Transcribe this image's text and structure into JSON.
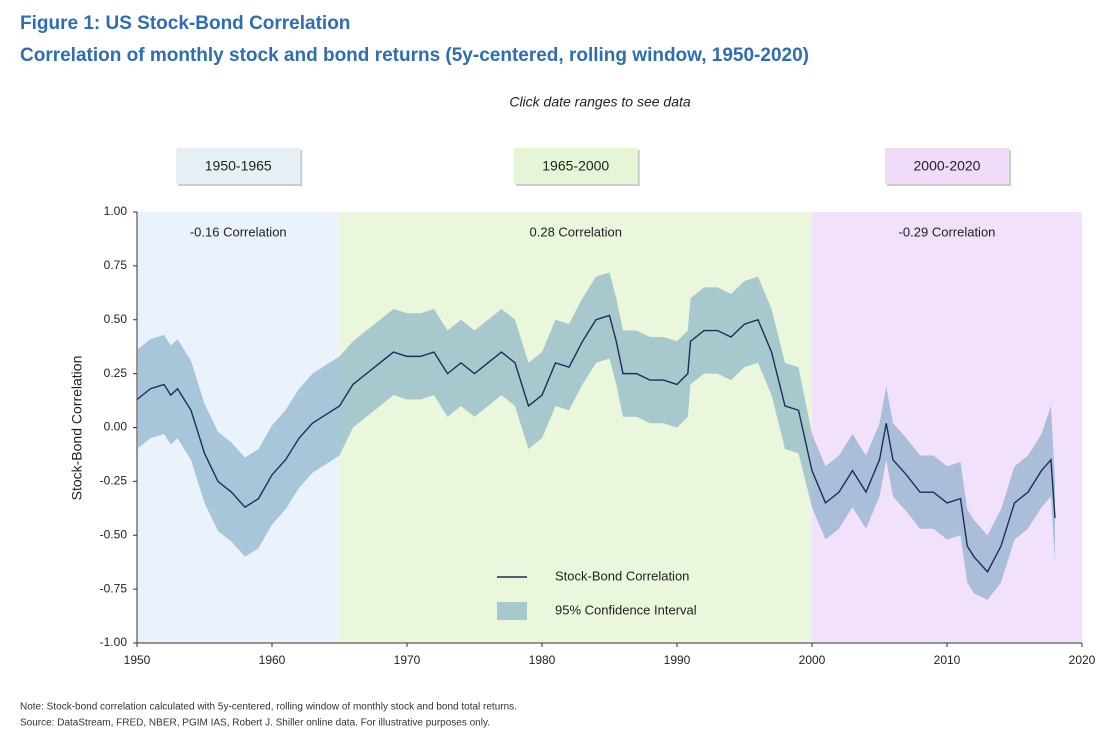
{
  "chart_data": {
    "type": "line",
    "title": "Figure 1: US Stock-Bond Correlation",
    "subtitle": "Correlation of monthly stock and bond returns (5y-centered, rolling window, 1950-2020)",
    "instruction": "Click date ranges to see data",
    "ylabel": "Stock-Bond Correlation",
    "xlim": [
      1950,
      2020
    ],
    "xticks": [
      1950,
      1960,
      1970,
      1980,
      1990,
      2000,
      2010,
      2020
    ],
    "ylim": [
      -1,
      1
    ],
    "yticks": [
      {
        "value": -1,
        "label": "-1.00"
      },
      {
        "value": -0.75,
        "label": "-0.75"
      },
      {
        "value": -0.5,
        "label": "-0.50"
      },
      {
        "value": -0.25,
        "label": "-0.25"
      },
      {
        "value": 0,
        "label": "0.00"
      },
      {
        "value": 0.25,
        "label": "0.25"
      },
      {
        "value": 0.5,
        "label": "0.50"
      },
      {
        "value": 0.75,
        "label": "0.75"
      },
      {
        "value": 1,
        "label": "1.00"
      }
    ],
    "regions": [
      {
        "label": "1950-1965",
        "start": 1950,
        "end": 1965,
        "color": "#eaf2fb",
        "button_color": "#e6f0f4",
        "annotation": "-0.16 Correlation"
      },
      {
        "label": "1965-2000",
        "start": 1965,
        "end": 2000,
        "color": "#eaf7dc",
        "button_color": "#e6f5d6",
        "annotation": "0.28 Correlation"
      },
      {
        "label": "2000-2020",
        "start": 2000,
        "end": 2020,
        "color": "#f1e1fb",
        "button_color": "#f0dcf8",
        "annotation": "-0.29 Correlation"
      }
    ],
    "x": [
      1950,
      1951,
      1952,
      1952.5,
      1953,
      1954,
      1955,
      1956,
      1957,
      1958,
      1959,
      1960,
      1961,
      1962,
      1963,
      1964,
      1965,
      1966,
      1967,
      1968,
      1969,
      1970,
      1971,
      1972,
      1973,
      1974,
      1975,
      1976,
      1977,
      1978,
      1979,
      1980,
      1981,
      1982,
      1983,
      1984,
      1985,
      1985.5,
      1986,
      1987,
      1988,
      1989,
      1990,
      1990.8,
      1991,
      1992,
      1993,
      1994,
      1995,
      1996,
      1997,
      1998,
      1999,
      2000,
      2001,
      2002,
      2003,
      2004,
      2005,
      2005.5,
      2006,
      2007,
      2008,
      2009,
      2010,
      2011,
      2011.5,
      2012,
      2013,
      2014,
      2015,
      2016,
      2017,
      2017.7,
      2018
    ],
    "series": [
      {
        "name": "Stock-Bond Correlation",
        "color": "#1f2d5c",
        "values": [
          0.13,
          0.18,
          0.2,
          0.15,
          0.18,
          0.08,
          -0.12,
          -0.25,
          -0.3,
          -0.37,
          -0.33,
          -0.22,
          -0.15,
          -0.05,
          0.02,
          0.06,
          0.1,
          0.2,
          0.25,
          0.3,
          0.35,
          0.33,
          0.33,
          0.35,
          0.25,
          0.3,
          0.25,
          0.3,
          0.35,
          0.3,
          0.1,
          0.15,
          0.3,
          0.28,
          0.4,
          0.5,
          0.52,
          0.4,
          0.25,
          0.25,
          0.22,
          0.22,
          0.2,
          0.25,
          0.4,
          0.45,
          0.45,
          0.42,
          0.48,
          0.5,
          0.35,
          0.1,
          0.08,
          -0.2,
          -0.35,
          -0.3,
          -0.2,
          -0.3,
          -0.15,
          0.02,
          -0.15,
          -0.22,
          -0.3,
          -0.3,
          -0.35,
          -0.33,
          -0.55,
          -0.6,
          -0.67,
          -0.55,
          -0.35,
          -0.3,
          -0.2,
          -0.15,
          -0.42
        ]
      }
    ],
    "band": {
      "name": "95% Confidence Interval",
      "color": "#6fa3bf",
      "lower": [
        -0.1,
        -0.05,
        -0.03,
        -0.08,
        -0.05,
        -0.15,
        -0.35,
        -0.48,
        -0.53,
        -0.6,
        -0.56,
        -0.45,
        -0.38,
        -0.28,
        -0.21,
        -0.17,
        -0.13,
        0,
        0.05,
        0.1,
        0.15,
        0.13,
        0.13,
        0.15,
        0.05,
        0.1,
        0.05,
        0.1,
        0.15,
        0.1,
        -0.1,
        -0.05,
        0.1,
        0.08,
        0.2,
        0.3,
        0.32,
        0.2,
        0.05,
        0.05,
        0.02,
        0.02,
        0,
        0.05,
        0.2,
        0.25,
        0.25,
        0.22,
        0.28,
        0.3,
        0.15,
        -0.1,
        -0.12,
        -0.37,
        -0.52,
        -0.47,
        -0.37,
        -0.47,
        -0.32,
        -0.15,
        -0.32,
        -0.39,
        -0.47,
        -0.47,
        -0.52,
        -0.5,
        -0.72,
        -0.77,
        -0.8,
        -0.72,
        -0.52,
        -0.47,
        -0.37,
        -0.32,
        -0.62
      ],
      "upper": [
        0.36,
        0.41,
        0.43,
        0.38,
        0.41,
        0.31,
        0.11,
        -0.02,
        -0.07,
        -0.14,
        -0.1,
        0.01,
        0.08,
        0.18,
        0.25,
        0.29,
        0.33,
        0.4,
        0.45,
        0.5,
        0.55,
        0.53,
        0.53,
        0.55,
        0.45,
        0.5,
        0.45,
        0.5,
        0.55,
        0.5,
        0.3,
        0.35,
        0.5,
        0.48,
        0.6,
        0.7,
        0.72,
        0.6,
        0.45,
        0.45,
        0.42,
        0.42,
        0.4,
        0.45,
        0.6,
        0.65,
        0.65,
        0.62,
        0.68,
        0.7,
        0.55,
        0.3,
        0.28,
        -0.03,
        -0.18,
        -0.13,
        -0.03,
        -0.13,
        0.02,
        0.19,
        0.02,
        -0.05,
        -0.13,
        -0.13,
        -0.18,
        -0.16,
        -0.38,
        -0.43,
        -0.5,
        -0.38,
        -0.18,
        -0.13,
        -0.03,
        0.1,
        -0.25
      ]
    },
    "note": "Note: Stock-bond correlation calculated with 5y-centered, rolling window of monthly stock and bond total returns.",
    "source": "Source: DataStream, FRED, NBER, PGIM IAS, Robert J. Shiller online data. For illustrative purposes only."
  }
}
